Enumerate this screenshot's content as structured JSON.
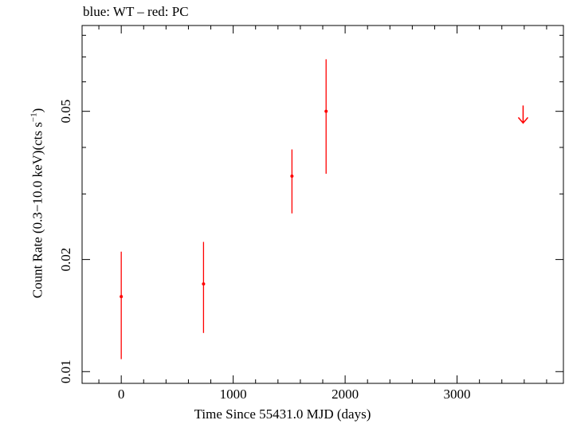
{
  "chart_data": {
    "type": "scatter",
    "title": "blue: WT – red: PC",
    "xlabel": "Time Since 55431.0 MJD (days)",
    "ylabel_main": "Count Rate (0.3−10.0 keV)(cts s",
    "ylabel_sup": "−1",
    "ylabel_end": ")",
    "x_scale": "linear",
    "y_scale": "log",
    "xlim": [
      -350,
      3950
    ],
    "ylim": [
      0.0093,
      0.085
    ],
    "x_ticks": [
      0,
      1000,
      2000,
      3000
    ],
    "x_tick_labels": [
      "0",
      "1000",
      "2000",
      "3000"
    ],
    "y_ticks": [
      0.01,
      0.02,
      0.05
    ],
    "y_tick_labels": [
      "0.01",
      "0.02",
      "0.05"
    ],
    "series": [
      {
        "color": "#ff0000",
        "points": [
          {
            "x": 0,
            "y": 0.0159,
            "ylow": 0.0108,
            "yhigh": 0.021
          },
          {
            "x": 735,
            "y": 0.0172,
            "ylow": 0.0127,
            "yhigh": 0.0223
          },
          {
            "x": 1525,
            "y": 0.0335,
            "ylow": 0.0266,
            "yhigh": 0.0395
          },
          {
            "x": 1830,
            "y": 0.05,
            "ylow": 0.034,
            "yhigh": 0.069
          }
        ],
        "upper_limits": [
          {
            "x": 3590,
            "y": 0.0465
          }
        ]
      }
    ]
  }
}
